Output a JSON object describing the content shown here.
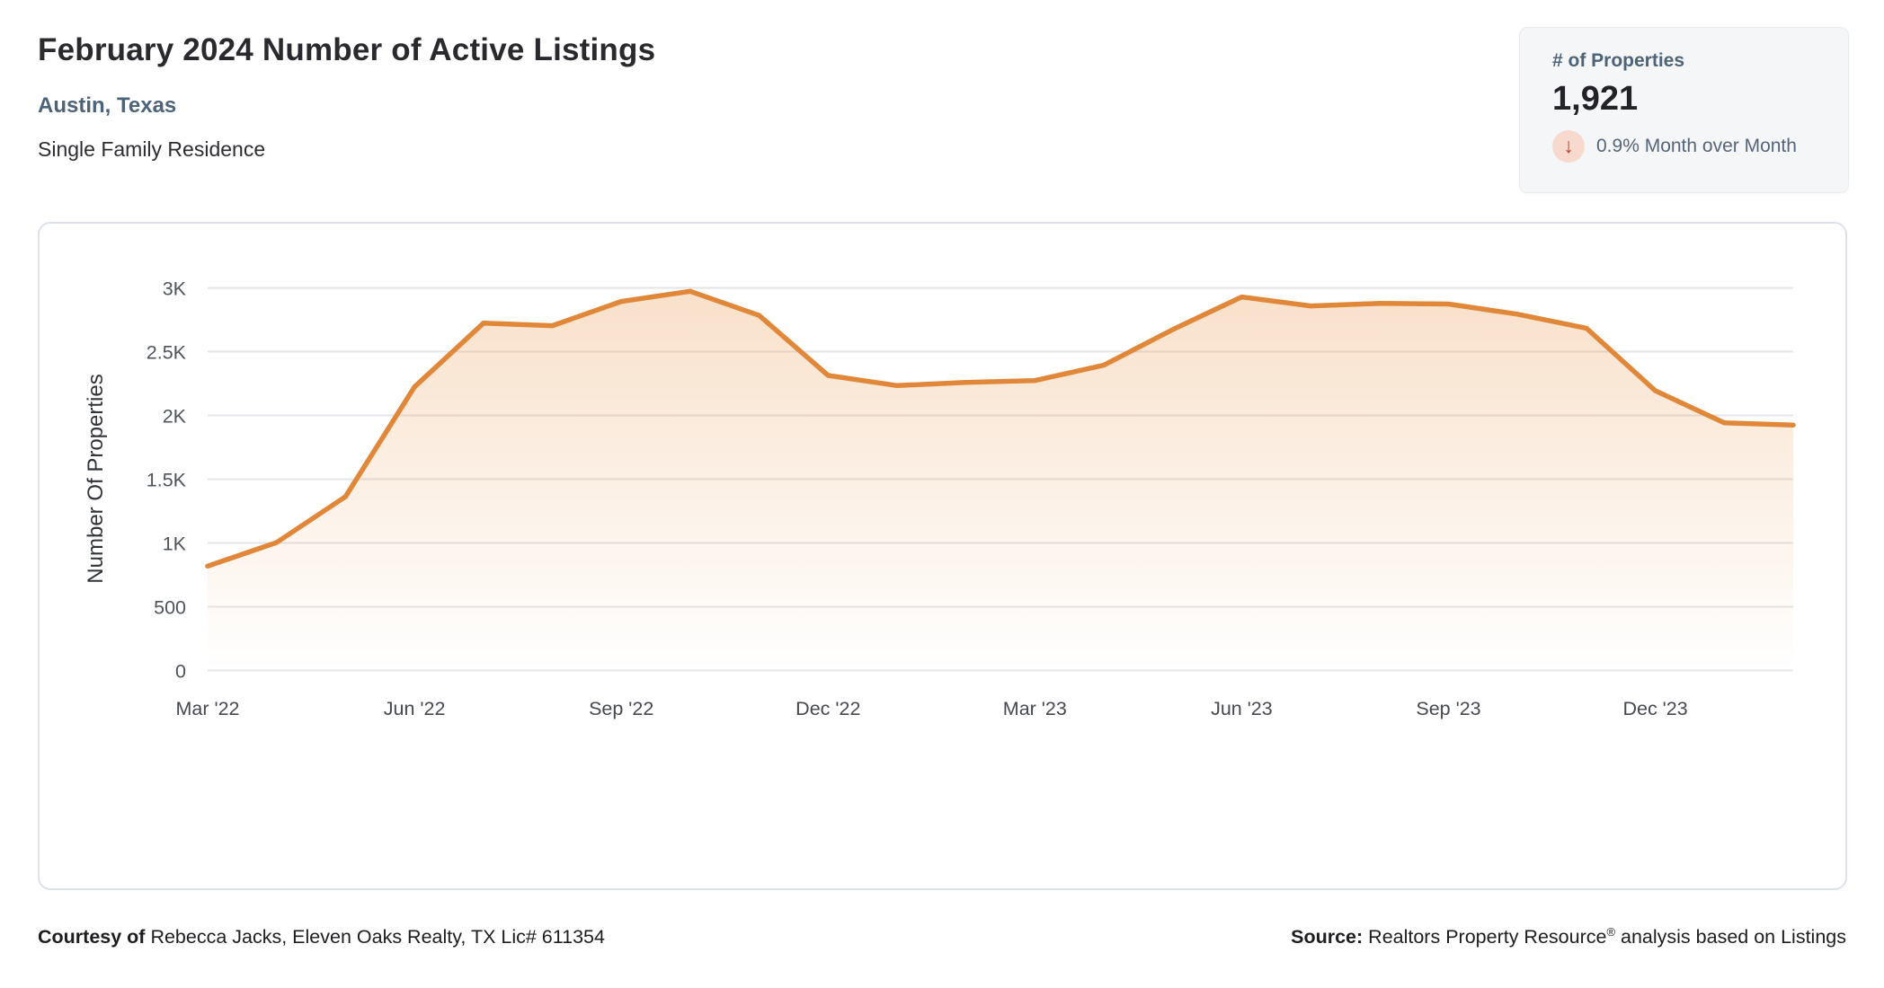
{
  "header": {
    "title": "February 2024 Number of Active Listings",
    "location": "Austin, Texas",
    "property_type": "Single Family Residence"
  },
  "stats_card": {
    "label": "# of Properties",
    "value": "1,921",
    "direction_icon": "down-arrow",
    "arrow_glyph": "↓",
    "change_text": "0.9% Month over Month"
  },
  "chart_data": {
    "type": "area",
    "title": "",
    "xlabel": "",
    "ylabel": "Number Of Properties",
    "ylim": [
      0,
      3000
    ],
    "y_grid_interval": 500,
    "grid": true,
    "legend": "none",
    "y_tick_labels": [
      "0",
      "500",
      "1K",
      "1.5K",
      "2K",
      "2.5K",
      "3K"
    ],
    "x_tick_labels": [
      "Mar '22",
      "Jun '22",
      "Sep '22",
      "Dec '22",
      "Mar '23",
      "Jun '23",
      "Sep '23",
      "Dec '23"
    ],
    "x_tick_every_n_points": 3,
    "series": [
      {
        "name": "Number Of Properties",
        "color": "#e0873a",
        "fill_top": "rgba(232,145,62,0.28)",
        "fill_bottom": "rgba(232,145,62,0)",
        "x": [
          "Mar '22",
          "Apr '22",
          "May '22",
          "Jun '22",
          "Jul '22",
          "Aug '22",
          "Sep '22",
          "Oct '22",
          "Nov '22",
          "Dec '22",
          "Jan '23",
          "Feb '23",
          "Mar '23",
          "Apr '23",
          "May '23",
          "Jun '23",
          "Jul '23",
          "Aug '23",
          "Sep '23",
          "Oct '23",
          "Nov '23",
          "Dec '23",
          "Jan '24",
          "Feb '24"
        ],
        "values": [
          815,
          1000,
          1360,
          2220,
          2720,
          2700,
          2890,
          2970,
          2780,
          2310,
          2230,
          2255,
          2270,
          2390,
          2670,
          2925,
          2855,
          2875,
          2870,
          2790,
          2680,
          2190,
          1938,
          1921
        ]
      }
    ]
  },
  "footer": {
    "courtesy_label": "Courtesy of",
    "courtesy_text": " Rebecca Jacks, Eleven Oaks Realty, TX Lic# 611354",
    "source_label": "Source:",
    "source_name": " Realtors Property Resource",
    "source_reg": "®",
    "source_suffix": " analysis based on Listings"
  },
  "colors": {
    "accent_slate_blue": "#4d6378",
    "line_orange": "#e0873a",
    "down_arrow_red": "#bf4127",
    "down_arrow_bg": "#f8d9ce",
    "gridline": "#e4e5e9",
    "card_border": "#dde2ea",
    "stats_bg": "#f5f6f8"
  }
}
